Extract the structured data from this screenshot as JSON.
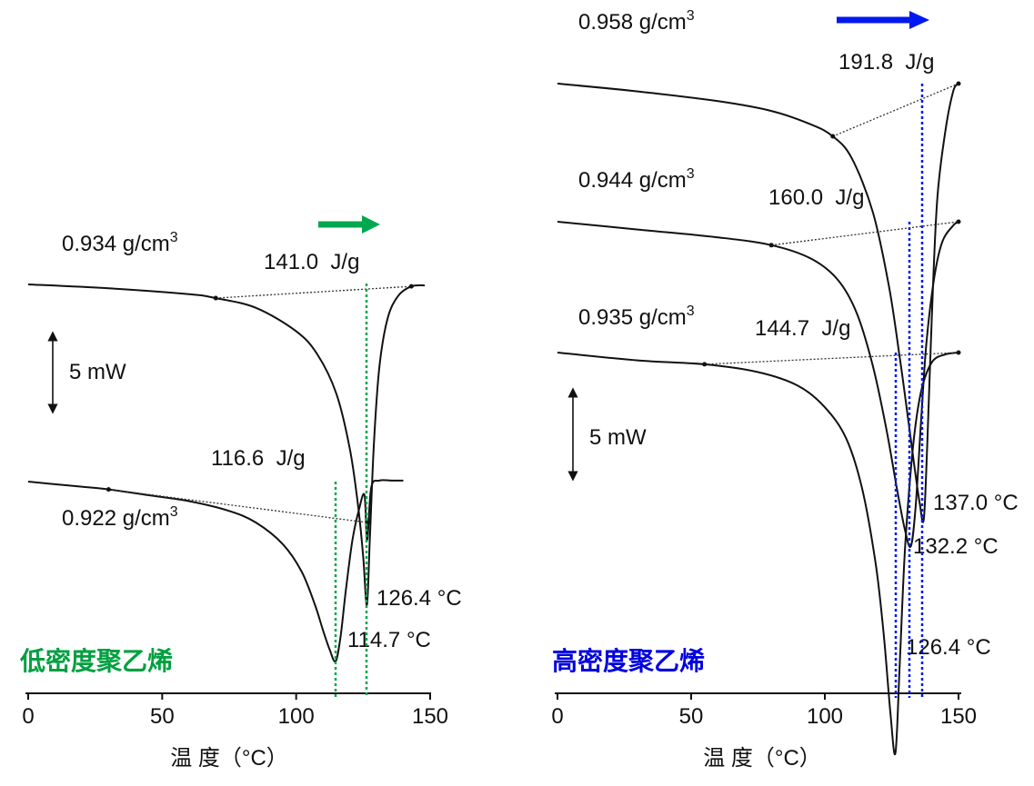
{
  "chart_data": [
    {
      "type": "line",
      "panel": "left",
      "title": "低密度聚乙烯",
      "title_color": "#00a040",
      "xlabel": "温 度（°C）",
      "xlim": [
        0,
        150
      ],
      "x_ticks": [
        0,
        50,
        100,
        150
      ],
      "x_tick_labels": [
        "0",
        "50",
        "100",
        "150"
      ],
      "scale_bar_label": "5 mW",
      "arrow_color": "#00a84f",
      "series": [
        {
          "name": "0.934 g/cm",
          "name_sup": "3",
          "enthalpy_label": "141.0  J/g",
          "peak_label": "126.4 °C",
          "peak_temperature": 126.4,
          "enthalpy": 141.0,
          "baseline_start": 70,
          "baseline_end": 143,
          "x": [
            0,
            30,
            60,
            70,
            85,
            100,
            108,
            115,
            120,
            123,
            125,
            126.4,
            127.5,
            129,
            131,
            134,
            138,
            143,
            148
          ],
          "y": [
            0,
            -0.2,
            -0.5,
            -0.7,
            -1.2,
            -2.4,
            -3.6,
            -5.6,
            -8.4,
            -11.2,
            -13.9,
            -16.4,
            -13.0,
            -8.2,
            -4.3,
            -1.8,
            -0.6,
            -0.1,
            -0.05
          ]
        },
        {
          "name": "0.922 g/cm",
          "name_sup": "3",
          "enthalpy_label": "116.6  J/g",
          "peak_label": "114.7 °C",
          "peak_temperature": 114.7,
          "enthalpy": 116.6,
          "baseline_start": 30,
          "baseline_end": 127,
          "x": [
            0,
            15,
            30,
            45,
            60,
            75,
            85,
            95,
            102,
            107,
            110,
            112.5,
            114.7,
            116.5,
            118.5,
            121,
            123.5,
            125.5,
            126.5,
            128,
            131,
            136,
            140
          ],
          "y": [
            0,
            -0.2,
            -0.4,
            -0.7,
            -1.0,
            -1.5,
            -2.1,
            -3.2,
            -4.6,
            -6.3,
            -7.6,
            -8.6,
            -9.2,
            -8.0,
            -5.6,
            -3.0,
            -1.4,
            -0.7,
            -3.0,
            -0.3,
            0.05,
            0.05,
            0.05
          ]
        }
      ]
    },
    {
      "type": "line",
      "panel": "right",
      "title": "高密度聚乙烯",
      "title_color": "#0000e0",
      "xlabel": "温 度（°C）",
      "xlim": [
        0,
        150
      ],
      "x_ticks": [
        0,
        50,
        100,
        150
      ],
      "x_tick_labels": [
        "0",
        "50",
        "100",
        "150"
      ],
      "scale_bar_label": "5 mW",
      "arrow_color": "#0018f0",
      "series": [
        {
          "name": "0.958 g/cm",
          "name_sup": "3",
          "enthalpy_label": "191.8  J/g",
          "peak_label": "137.0 °C",
          "peak_temperature": 137.0,
          "enthalpy": 191.8,
          "baseline_start": 103,
          "baseline_end": 150,
          "x": [
            0,
            30,
            60,
            80,
            95,
            103,
            110,
            118,
            124,
            128,
            131,
            133.5,
            135.5,
            137.0,
            138.3,
            140,
            142,
            145,
            148,
            150
          ],
          "y": [
            0,
            -0.4,
            -0.9,
            -1.4,
            -2.1,
            -2.7,
            -3.8,
            -6.6,
            -10.4,
            -14.0,
            -17.0,
            -19.6,
            -21.5,
            -22.3,
            -18.5,
            -12.0,
            -6.0,
            -2.5,
            -0.4,
            0
          ]
        },
        {
          "name": "0.944 g/cm",
          "name_sup": "3",
          "enthalpy_label": "160.0  J/g",
          "peak_label": "132.2 °C",
          "peak_temperature": 132.2,
          "enthalpy": 160.0,
          "baseline_start": 80,
          "baseline_end": 150,
          "x": [
            0,
            30,
            60,
            80,
            95,
            105,
            112,
            118,
            123,
            127,
            130,
            132.2,
            134,
            136,
            138,
            141,
            144,
            148,
            150
          ],
          "y": [
            0,
            -0.4,
            -0.8,
            -1.2,
            -1.9,
            -3.0,
            -4.7,
            -7.4,
            -10.6,
            -13.7,
            -15.8,
            -16.6,
            -14.5,
            -10.2,
            -6.2,
            -2.8,
            -1.0,
            -0.2,
            0
          ]
        },
        {
          "name": "0.935 g/cm",
          "name_sup": "3",
          "enthalpy_label": "144.7  J/g",
          "peak_label": "126.4 °C",
          "peak_temperature": 126.4,
          "enthalpy": 144.7,
          "baseline_start": 55,
          "baseline_end": 150,
          "x": [
            0,
            30,
            55,
            75,
            90,
            100,
            108,
            114,
            119,
            122,
            124.5,
            126.4,
            128,
            130,
            133,
            136,
            140,
            145,
            150
          ],
          "y": [
            0,
            -0.4,
            -0.6,
            -1.0,
            -1.7,
            -2.8,
            -4.4,
            -7.0,
            -10.8,
            -14.4,
            -18.4,
            -20.5,
            -16.0,
            -10.0,
            -4.8,
            -2.0,
            -0.5,
            -0.1,
            0
          ]
        }
      ]
    }
  ]
}
